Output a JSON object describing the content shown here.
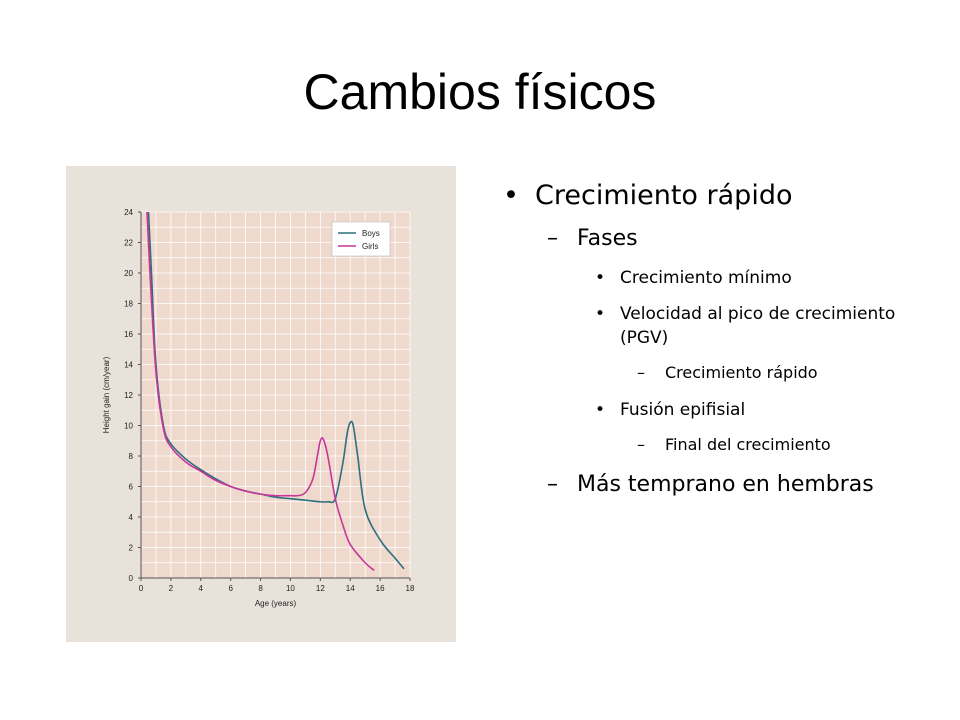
{
  "slide": {
    "title": "Cambios físicos"
  },
  "bullets": {
    "l1_marker": "•",
    "l2_marker": "–",
    "l3_marker": "•",
    "l4_marker": "–",
    "crecimiento": "Crecimiento rápido",
    "fases": "Fases",
    "minimo": "Crecimiento mínimo",
    "pgv": "Velocidad al pico de crecimiento (PGV)",
    "rapido": "Crecimiento rápido",
    "fusion": "Fusión epifisial",
    "final": "Final del crecimiento",
    "temprano": "Más temprano en hembras"
  },
  "chart_data": {
    "type": "line",
    "xlabel": "Age (years)",
    "ylabel": "Height gain (cm/year)",
    "xlim": [
      0,
      18
    ],
    "ylim": [
      0,
      24
    ],
    "xticks": [
      0,
      2,
      4,
      6,
      8,
      10,
      12,
      14,
      16,
      18
    ],
    "yticks": [
      0,
      2,
      4,
      6,
      8,
      10,
      12,
      14,
      16,
      18,
      20,
      22,
      24
    ],
    "grid": true,
    "legend_position": "top-right",
    "colors": {
      "Boys": "#2c6f80",
      "Girls": "#c7379a",
      "background": "#efd8cc",
      "grid": "#ffffff"
    },
    "series": [
      {
        "name": "Boys",
        "x": [
          0.5,
          0.7,
          1,
          1.5,
          2,
          3,
          4,
          5,
          6,
          7,
          8,
          9,
          10,
          11,
          12,
          12.5,
          13,
          13.5,
          13.8,
          14,
          14.2,
          14.5,
          15,
          16,
          17,
          17.6
        ],
        "y": [
          24,
          20,
          14,
          10,
          8.8,
          7.8,
          7.1,
          6.5,
          6.0,
          5.7,
          5.5,
          5.3,
          5.2,
          5.1,
          5.0,
          5.0,
          5.2,
          7.5,
          9.5,
          10.2,
          10.0,
          8.0,
          4.5,
          2.5,
          1.3,
          0.6
        ]
      },
      {
        "name": "Girls",
        "x": [
          0.4,
          0.6,
          1,
          1.5,
          2,
          3,
          4,
          5,
          6,
          7,
          8,
          9,
          10,
          10.5,
          11,
          11.5,
          11.8,
          12,
          12.2,
          12.5,
          13,
          13.5,
          14,
          15,
          15.6
        ],
        "y": [
          24,
          20,
          13.5,
          9.8,
          8.6,
          7.6,
          7.0,
          6.4,
          6.0,
          5.7,
          5.5,
          5.4,
          5.4,
          5.4,
          5.6,
          6.5,
          8.0,
          9.0,
          9.1,
          8.0,
          5.2,
          3.5,
          2.2,
          1.0,
          0.5
        ]
      }
    ]
  }
}
